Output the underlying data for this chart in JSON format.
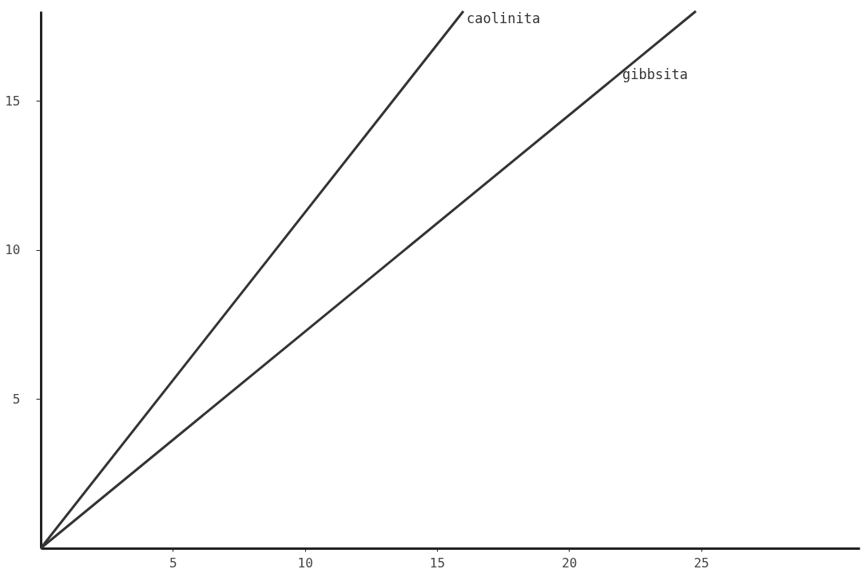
{
  "chart_data": {
    "type": "line",
    "series": [
      {
        "name": "caolinita",
        "color": "#333333",
        "x": [
          0,
          16.0
        ],
        "values": [
          0,
          18.0
        ]
      },
      {
        "name": "gibbsita",
        "color": "#333333",
        "x": [
          0,
          24.8
        ],
        "values": [
          0,
          18.0
        ]
      }
    ],
    "xlim": [
      0,
      31
    ],
    "ylim": [
      0,
      18
    ],
    "xticks": [
      5,
      10,
      15,
      20,
      25
    ],
    "yticks": [
      5,
      10,
      15
    ],
    "grid": false,
    "legend": false,
    "marker": "none",
    "line_style": "solid"
  }
}
